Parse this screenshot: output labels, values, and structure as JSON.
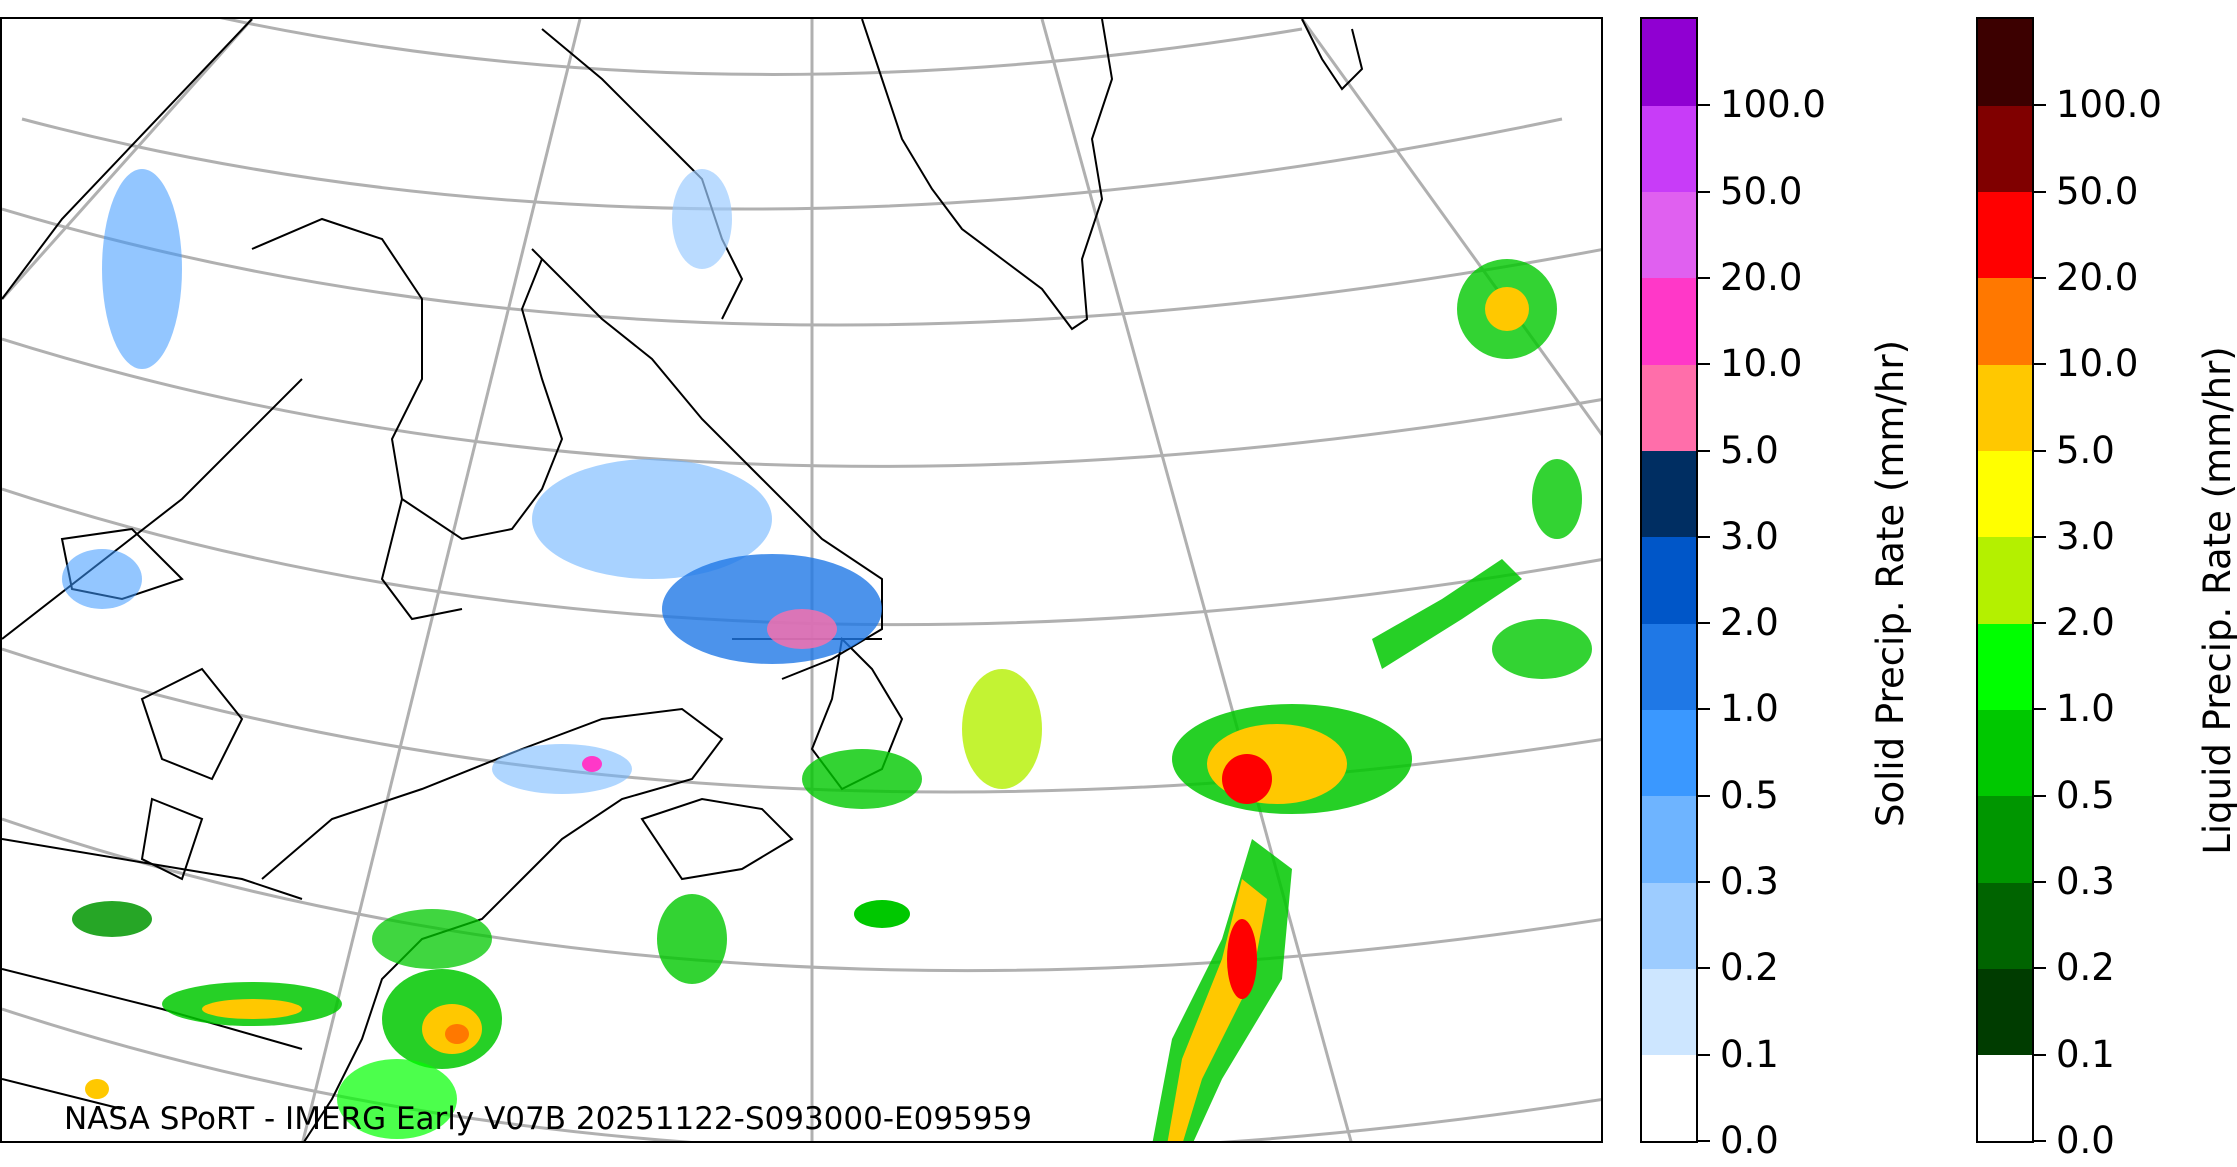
{
  "caption": "NASA SPoRT - IMERG Early V07B 20251122-S093000-E095959",
  "colors": {
    "land_outline": "#000000",
    "graticule": "#b0b0b0"
  },
  "colorbars": [
    {
      "id": "solid",
      "label": "Solid Precip. Rate (mm/hr)",
      "ticks": [
        "0.0",
        "0.1",
        "0.2",
        "0.3",
        "0.5",
        "1.0",
        "2.0",
        "3.0",
        "5.0",
        "10.0",
        "20.0",
        "50.0",
        "100.0"
      ],
      "colors": [
        "#ffffff",
        "#cde6ff",
        "#9dccff",
        "#6eb4ff",
        "#3a98ff",
        "#1f78e6",
        "#0056c8",
        "#002e62",
        "#ff6eaa",
        "#ff38c8",
        "#e060f0",
        "#c83cf8",
        "#9000d2"
      ]
    },
    {
      "id": "liquid",
      "label": "Liquid Precip. Rate (mm/hr)",
      "ticks": [
        "0.0",
        "0.1",
        "0.2",
        "0.3",
        "0.5",
        "1.0",
        "2.0",
        "3.0",
        "5.0",
        "10.0",
        "20.0",
        "50.0",
        "100.0"
      ],
      "colors": [
        "#ffffff",
        "#003c00",
        "#006400",
        "#009600",
        "#00c800",
        "#00ff00",
        "#b4f000",
        "#ffff00",
        "#ffc800",
        "#ff7800",
        "#ff0000",
        "#800000",
        "#3c0000"
      ]
    }
  ]
}
